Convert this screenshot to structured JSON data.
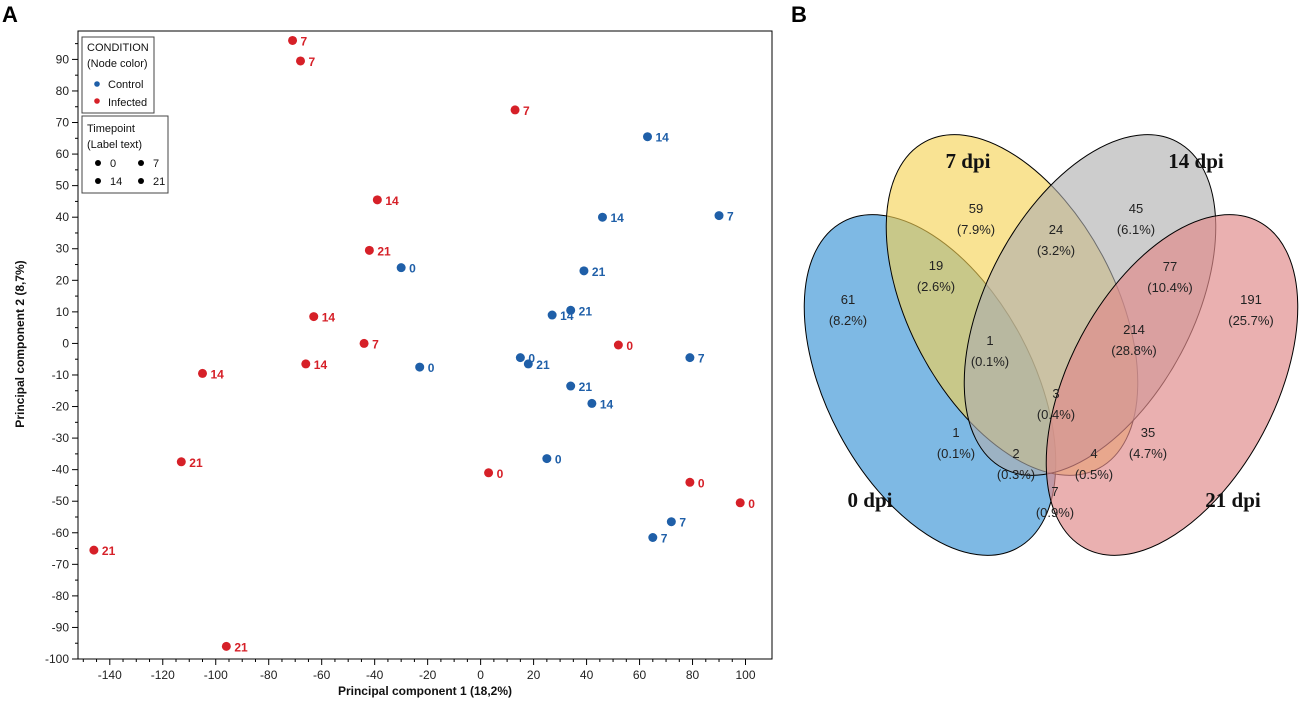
{
  "panels": {
    "a": "A",
    "b": "B"
  },
  "colors": {
    "control": "#1f5fa8",
    "infected": "#d62028",
    "axis": "#000000",
    "set_0dpi": "#5aa5dc",
    "set_7dpi": "#f5d251",
    "set_14dpi": "#aeaeae",
    "set_21dpi": "#e08a8a"
  },
  "chart_data": [
    {
      "type": "scatter",
      "title": "",
      "xlabel": "Principal component 1 (18,2%)",
      "ylabel": "Principal component 2 (8,7%)",
      "xlim": [
        -152,
        110
      ],
      "ylim": [
        -100,
        99
      ],
      "xticks": [
        -140,
        -120,
        -100,
        -80,
        -60,
        -40,
        -20,
        0,
        20,
        40,
        60,
        80,
        100
      ],
      "yticks": [
        90,
        80,
        70,
        60,
        50,
        40,
        30,
        20,
        10,
        0,
        -10,
        -20,
        -30,
        -40,
        -50,
        -60,
        -70,
        -80,
        -90,
        -100
      ],
      "legend": {
        "condition_title": "CONDITION",
        "condition_subtitle": "(Node color)",
        "condition_items": [
          {
            "label": "Control",
            "group": "control"
          },
          {
            "label": "Infected",
            "group": "infected"
          }
        ],
        "timepoint_title": "Timepoint",
        "timepoint_subtitle": "(Label text)",
        "timepoint_items": [
          "0",
          "7",
          "14",
          "21"
        ],
        "placement": "top-left"
      },
      "points": [
        {
          "x": -71,
          "y": 96,
          "label": "7",
          "group": "infected"
        },
        {
          "x": -68,
          "y": 89.5,
          "label": "7",
          "group": "infected"
        },
        {
          "x": 13,
          "y": 74,
          "label": "7",
          "group": "infected"
        },
        {
          "x": -39,
          "y": 45.5,
          "label": "14",
          "group": "infected"
        },
        {
          "x": -42,
          "y": 29.5,
          "label": "21",
          "group": "infected"
        },
        {
          "x": -63,
          "y": 8.5,
          "label": "14",
          "group": "infected"
        },
        {
          "x": -44,
          "y": 0,
          "label": "7",
          "group": "infected"
        },
        {
          "x": -66,
          "y": -6.5,
          "label": "14",
          "group": "infected"
        },
        {
          "x": -105,
          "y": -9.5,
          "label": "14",
          "group": "infected"
        },
        {
          "x": -113,
          "y": -37.5,
          "label": "21",
          "group": "infected"
        },
        {
          "x": -146,
          "y": -65.5,
          "label": "21",
          "group": "infected"
        },
        {
          "x": -96,
          "y": -96,
          "label": "21",
          "group": "infected"
        },
        {
          "x": 52,
          "y": -0.5,
          "label": "0",
          "group": "infected"
        },
        {
          "x": 3,
          "y": -41,
          "label": "0",
          "group": "infected"
        },
        {
          "x": 79,
          "y": -44,
          "label": "0",
          "group": "infected"
        },
        {
          "x": 98,
          "y": -50.5,
          "label": "0",
          "group": "infected"
        },
        {
          "x": 63,
          "y": 65.5,
          "label": "14",
          "group": "control"
        },
        {
          "x": 90,
          "y": 40.5,
          "label": "7",
          "group": "control"
        },
        {
          "x": 46,
          "y": 40,
          "label": "14",
          "group": "control"
        },
        {
          "x": -30,
          "y": 24,
          "label": "0",
          "group": "control"
        },
        {
          "x": 39,
          "y": 23,
          "label": "21",
          "group": "control"
        },
        {
          "x": 34,
          "y": 10.5,
          "label": "21",
          "group": "control"
        },
        {
          "x": 27,
          "y": 9,
          "label": "14",
          "group": "control"
        },
        {
          "x": 15,
          "y": -4.5,
          "label": "0",
          "group": "control"
        },
        {
          "x": 18,
          "y": -6.5,
          "label": "21",
          "group": "control"
        },
        {
          "x": -23,
          "y": -7.5,
          "label": "0",
          "group": "control"
        },
        {
          "x": 79,
          "y": -4.5,
          "label": "7",
          "group": "control"
        },
        {
          "x": 34,
          "y": -13.5,
          "label": "21",
          "group": "control"
        },
        {
          "x": 42,
          "y": -19,
          "label": "14",
          "group": "control"
        },
        {
          "x": 25,
          "y": -36.5,
          "label": "0",
          "group": "control"
        },
        {
          "x": 72,
          "y": -56.5,
          "label": "7",
          "group": "control"
        },
        {
          "x": 65,
          "y": -61.5,
          "label": "7",
          "group": "control"
        }
      ]
    },
    {
      "type": "venn",
      "title": "",
      "sets": [
        "0 dpi",
        "7 dpi",
        "14 dpi",
        "21 dpi"
      ],
      "regions": [
        {
          "sets": [
            "7 dpi"
          ],
          "count": "59",
          "percent": "(7.9%)"
        },
        {
          "sets": [
            "14 dpi"
          ],
          "count": "45",
          "percent": "(6.1%)"
        },
        {
          "sets": [
            "0 dpi"
          ],
          "count": "61",
          "percent": "(8.2%)"
        },
        {
          "sets": [
            "21 dpi"
          ],
          "count": "191",
          "percent": "(25.7%)"
        },
        {
          "sets": [
            "0 dpi",
            "7 dpi"
          ],
          "count": "19",
          "percent": "(2.6%)"
        },
        {
          "sets": [
            "7 dpi",
            "14 dpi"
          ],
          "count": "24",
          "percent": "(3.2%)"
        },
        {
          "sets": [
            "14 dpi",
            "21 dpi"
          ],
          "count": "77",
          "percent": "(10.4%)"
        },
        {
          "sets": [
            "0 dpi",
            "7 dpi",
            "14 dpi"
          ],
          "count": "1",
          "percent": "(0.1%)"
        },
        {
          "sets": [
            "7 dpi",
            "14 dpi",
            "21 dpi"
          ],
          "count": "214",
          "percent": "(28.8%)"
        },
        {
          "sets": [
            "0 dpi",
            "14 dpi"
          ],
          "count": "1",
          "percent": "(0.1%)"
        },
        {
          "sets": [
            "0 dpi",
            "7 dpi",
            "14 dpi",
            "21 dpi"
          ],
          "count": "3",
          "percent": "(0.4%)"
        },
        {
          "sets": [
            "7 dpi",
            "21 dpi"
          ],
          "count": "35",
          "percent": "(4.7%)"
        },
        {
          "sets": [
            "0 dpi",
            "14 dpi",
            "21 dpi"
          ],
          "count": "2",
          "percent": "(0.3%)"
        },
        {
          "sets": [
            "0 dpi",
            "7 dpi",
            "21 dpi"
          ],
          "count": "4",
          "percent": "(0.5%)"
        },
        {
          "sets": [
            "0 dpi",
            "21 dpi"
          ],
          "count": "7",
          "percent": "(0.9%)"
        }
      ]
    }
  ]
}
